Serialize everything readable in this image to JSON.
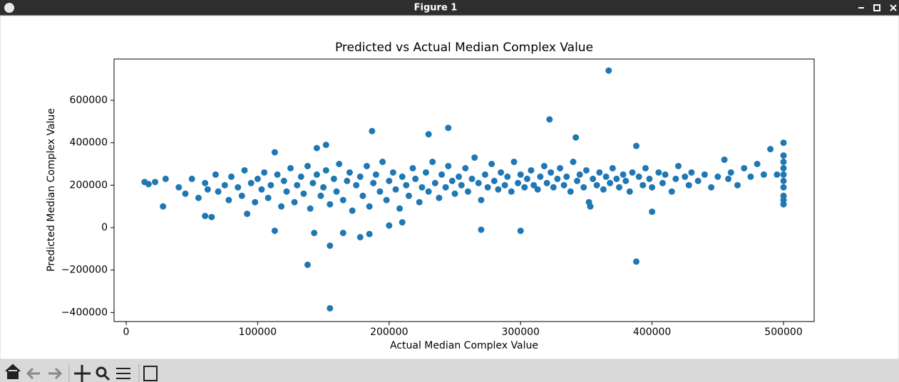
{
  "window": {
    "title": "Figure 1"
  },
  "chart_data": {
    "type": "scatter",
    "title": "Predicted vs Actual Median Complex Value",
    "x_label": "Actual Median Complex Value",
    "y_label": "Predicted Median Complex Value",
    "color": "#1f77b4",
    "grid": false,
    "xlim": [
      -9220,
      523300
    ],
    "ylim": [
      -442400,
      794400
    ],
    "xticks": [
      0,
      100000,
      200000,
      300000,
      400000,
      500000
    ],
    "yticks": [
      {
        "value": -400000,
        "label": "−400000"
      },
      {
        "value": -200000,
        "label": "−200000"
      },
      0,
      200000,
      400000,
      600000
    ],
    "x": [
      14000,
      17000,
      22000,
      28000,
      30000,
      113000,
      138000,
      155000,
      155000,
      187000,
      245000,
      230000,
      322000,
      367000,
      388000,
      388000,
      400000,
      342000,
      270000,
      300000,
      145000,
      152000,
      178000,
      165000,
      185000,
      143000,
      200000,
      210000,
      60000,
      65000,
      92000,
      113000,
      40000,
      45000,
      50000,
      55000,
      60000,
      62000,
      68000,
      70000,
      75000,
      78000,
      80000,
      85000,
      88000,
      90000,
      95000,
      98000,
      100000,
      103000,
      105000,
      108000,
      110000,
      115000,
      118000,
      120000,
      122000,
      125000,
      128000,
      130000,
      133000,
      135000,
      138000,
      140000,
      142000,
      145000,
      148000,
      150000,
      152000,
      155000,
      158000,
      160000,
      162000,
      165000,
      168000,
      170000,
      172000,
      175000,
      178000,
      180000,
      183000,
      185000,
      188000,
      190000,
      193000,
      195000,
      198000,
      200000,
      203000,
      205000,
      208000,
      210000,
      213000,
      215000,
      218000,
      220000,
      223000,
      225000,
      228000,
      230000,
      233000,
      235000,
      238000,
      240000,
      243000,
      245000,
      248000,
      250000,
      253000,
      255000,
      258000,
      260000,
      263000,
      265000,
      268000,
      270000,
      273000,
      275000,
      278000,
      280000,
      283000,
      285000,
      288000,
      290000,
      293000,
      295000,
      298000,
      300000,
      303000,
      305000,
      308000,
      310000,
      313000,
      315000,
      318000,
      320000,
      323000,
      325000,
      328000,
      330000,
      333000,
      335000,
      338000,
      340000,
      343000,
      345000,
      348000,
      350000,
      352000,
      353000,
      355000,
      358000,
      360000,
      363000,
      365000,
      368000,
      370000,
      373000,
      375000,
      378000,
      380000,
      383000,
      385000,
      390000,
      393000,
      395000,
      398000,
      400000,
      405000,
      408000,
      410000,
      415000,
      418000,
      420000,
      425000,
      428000,
      430000,
      435000,
      440000,
      445000,
      450000,
      455000,
      458000,
      460000,
      465000,
      470000,
      475000,
      480000,
      485000,
      490000,
      495000,
      500000,
      500000,
      500000,
      500000,
      500000,
      500000,
      500000,
      500000,
      500000,
      500000
    ],
    "y": [
      215000,
      205000,
      215000,
      100000,
      230000,
      -15000,
      -175000,
      -380000,
      -85000,
      455000,
      470000,
      440000,
      510000,
      740000,
      -160000,
      385000,
      75000,
      425000,
      -10000,
      -15000,
      375000,
      390000,
      -45000,
      -25000,
      -30000,
      -25000,
      10000,
      25000,
      55000,
      50000,
      65000,
      355000,
      190000,
      160000,
      230000,
      140000,
      210000,
      180000,
      250000,
      170000,
      200000,
      130000,
      240000,
      190000,
      150000,
      270000,
      210000,
      120000,
      230000,
      180000,
      260000,
      140000,
      200000,
      250000,
      100000,
      220000,
      170000,
      280000,
      120000,
      200000,
      240000,
      160000,
      290000,
      90000,
      210000,
      250000,
      150000,
      190000,
      270000,
      110000,
      230000,
      170000,
      300000,
      130000,
      220000,
      260000,
      80000,
      200000,
      240000,
      150000,
      290000,
      100000,
      210000,
      250000,
      170000,
      310000,
      130000,
      220000,
      260000,
      180000,
      90000,
      240000,
      200000,
      150000,
      280000,
      230000,
      120000,
      190000,
      260000,
      170000,
      310000,
      210000,
      140000,
      250000,
      190000,
      290000,
      220000,
      160000,
      240000,
      200000,
      280000,
      170000,
      230000,
      330000,
      210000,
      130000,
      250000,
      190000,
      300000,
      220000,
      180000,
      260000,
      200000,
      240000,
      170000,
      310000,
      210000,
      250000,
      190000,
      230000,
      270000,
      200000,
      180000,
      240000,
      290000,
      210000,
      260000,
      190000,
      230000,
      280000,
      200000,
      240000,
      170000,
      310000,
      220000,
      250000,
      190000,
      270000,
      120000,
      100000,
      230000,
      200000,
      260000,
      180000,
      240000,
      210000,
      280000,
      230000,
      190000,
      250000,
      220000,
      170000,
      260000,
      240000,
      200000,
      280000,
      230000,
      190000,
      260000,
      210000,
      250000,
      170000,
      230000,
      290000,
      240000,
      200000,
      260000,
      220000,
      250000,
      190000,
      240000,
      320000,
      230000,
      260000,
      200000,
      280000,
      240000,
      300000,
      250000,
      370000,
      250000,
      110000,
      150000,
      190000,
      220000,
      250000,
      280000,
      310000,
      340000,
      400000,
      130000
    ]
  }
}
